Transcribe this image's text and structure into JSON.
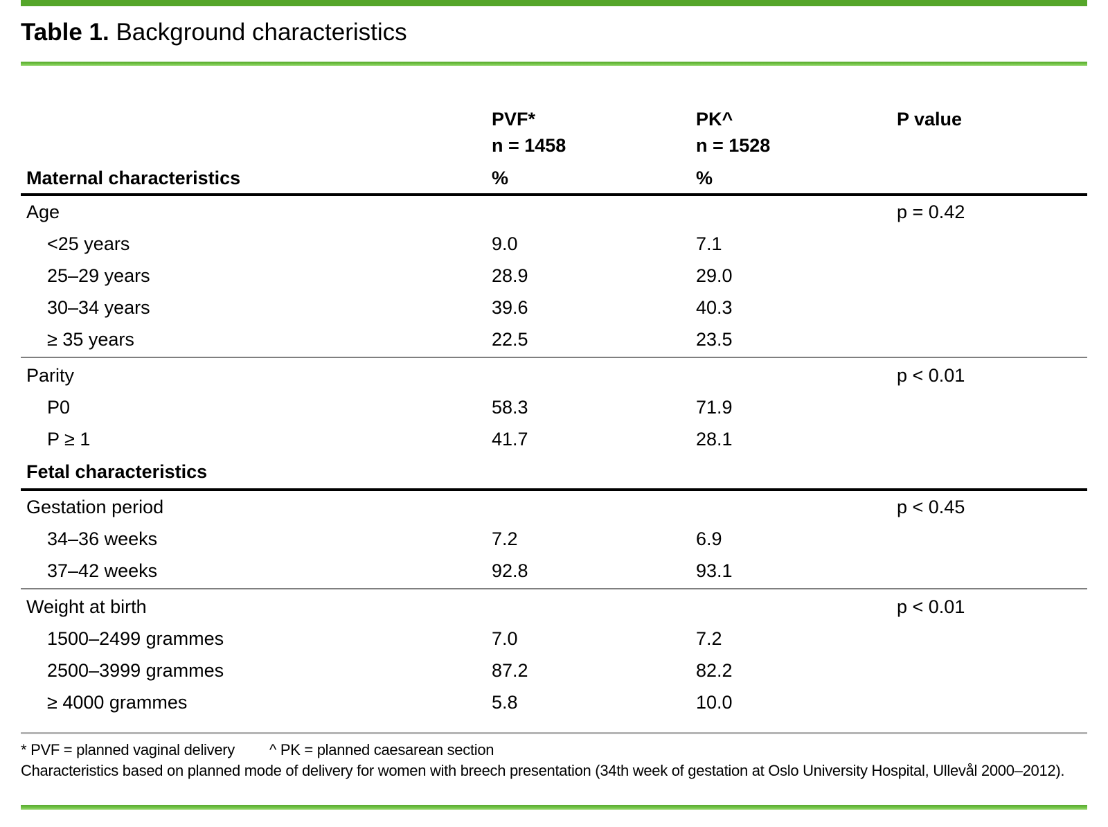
{
  "title": {
    "bold": "Table 1.",
    "regular": " Background characteristics"
  },
  "columns": {
    "pvf_name": "PVF*",
    "pvf_n": "n = 1458",
    "pk_name": "PK^",
    "pk_n": "n = 1528",
    "pvalue_label": "P value",
    "section1_label": "Maternal characteristics",
    "pvf_unit": "%",
    "pk_unit": "%"
  },
  "table": {
    "rows": [
      {
        "type": "group",
        "label": "Age",
        "pvf": "",
        "pk": "",
        "p": "p = 0.42"
      },
      {
        "type": "item",
        "label": "<25 years",
        "pvf": "9.0",
        "pk": "7.1",
        "p": ""
      },
      {
        "type": "item",
        "label": "25–29 years",
        "pvf": "28.9",
        "pk": "29.0",
        "p": ""
      },
      {
        "type": "item",
        "label": "30–34 years",
        "pvf": "39.6",
        "pk": "40.3",
        "p": ""
      },
      {
        "type": "item",
        "label": "≥ 35 years",
        "pvf": "22.5",
        "pk": "23.5",
        "p": ""
      },
      {
        "type": "rule-thin"
      },
      {
        "type": "group",
        "label": "Parity",
        "pvf": "",
        "pk": "",
        "p": "p < 0.01"
      },
      {
        "type": "item",
        "label": "P0",
        "pvf": "58.3",
        "pk": "71.9",
        "p": ""
      },
      {
        "type": "item",
        "label": "P ≥ 1",
        "pvf": "41.7",
        "pk": "28.1",
        "p": ""
      },
      {
        "type": "section",
        "label": "Fetal characteristics",
        "pvf": "",
        "pk": "",
        "p": ""
      },
      {
        "type": "rule-thick"
      },
      {
        "type": "group",
        "label": "Gestation period",
        "pvf": "",
        "pk": "",
        "p": "p < 0.45"
      },
      {
        "type": "item",
        "label": "34–36 weeks",
        "pvf": "7.2",
        "pk": "6.9",
        "p": ""
      },
      {
        "type": "item",
        "label": "37–42 weeks",
        "pvf": "92.8",
        "pk": "93.1",
        "p": ""
      },
      {
        "type": "rule-thin"
      },
      {
        "type": "group",
        "label": "Weight at birth",
        "pvf": "",
        "pk": "",
        "p": "p < 0.01"
      },
      {
        "type": "item",
        "label": "1500–2499 grammes",
        "pvf": "7.0",
        "pk": "7.2",
        "p": ""
      },
      {
        "type": "item",
        "label": "2500–3999 grammes",
        "pvf": "87.2",
        "pk": "82.2",
        "p": ""
      },
      {
        "type": "item",
        "label": "≥ 4000 grammes",
        "pvf": "5.8",
        "pk": "10.0",
        "p": ""
      }
    ]
  },
  "footnotes": {
    "line1_a": "* PVF = planned vaginal delivery",
    "line1_b": "^ PK = planned caesarean section",
    "line2": "Characteristics based on planned mode of delivery for women with breech presentation (34th week of gestation at Oslo University Hospital, Ullevål 2000–2012)."
  },
  "colors": {
    "top_bar": "#55a62a",
    "green_rule": "#72c445",
    "rule_black": "#000000",
    "rule_gray": "#7f7f7f",
    "footnote_rule": "#b5b5b5"
  }
}
